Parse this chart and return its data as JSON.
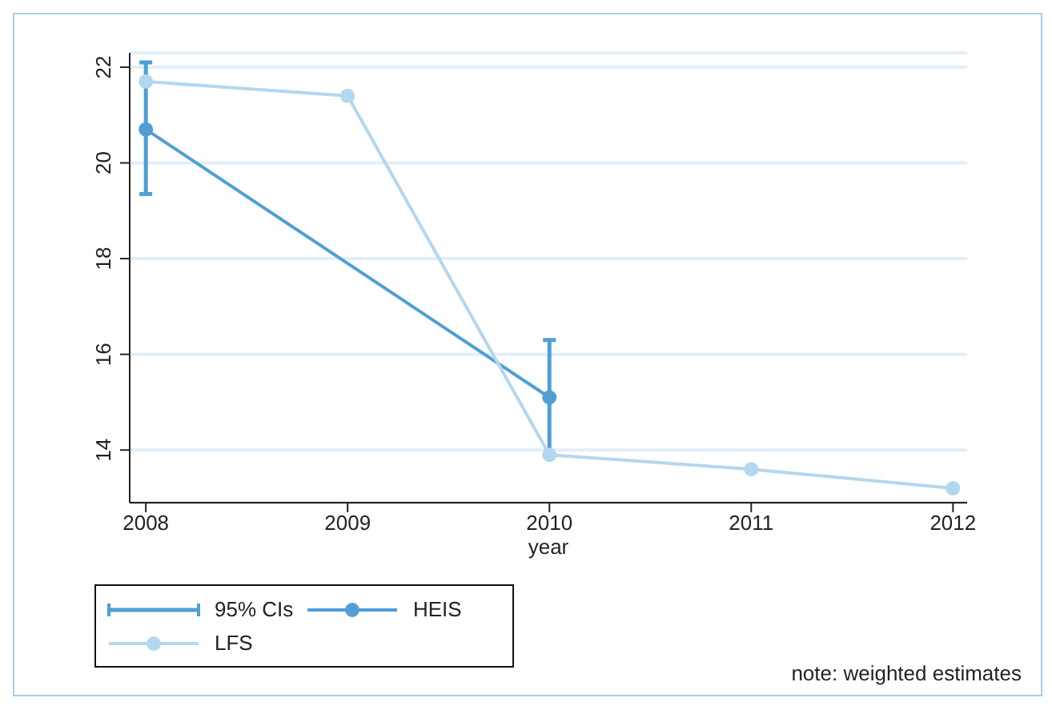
{
  "chart_data": {
    "type": "line",
    "xlabel": "year",
    "x": [
      2008,
      2009,
      2010,
      2011,
      2012
    ],
    "xlim": [
      2007.92,
      2012.07
    ],
    "xticks": [
      2008,
      2009,
      2010,
      2011,
      2012
    ],
    "ylim": [
      12.9,
      22.3
    ],
    "yticks": [
      14,
      16,
      18,
      20,
      22
    ],
    "grid": "y",
    "legend": "bottom left",
    "marker": "circle",
    "series": [
      {
        "name": "HEIS",
        "color": "#4f9fd6",
        "x": [
          2008,
          2010
        ],
        "values": [
          20.7,
          15.1
        ],
        "errors": [
          [
            19.35,
            22.1
          ],
          [
            13.9,
            16.3
          ]
        ]
      },
      {
        "name": "LFS",
        "color": "#b3d7ee",
        "values": [
          21.7,
          21.4,
          13.9,
          13.6,
          13.2
        ]
      }
    ],
    "annotations": [
      "95% CIs",
      "note: weighted estimates"
    ]
  }
}
